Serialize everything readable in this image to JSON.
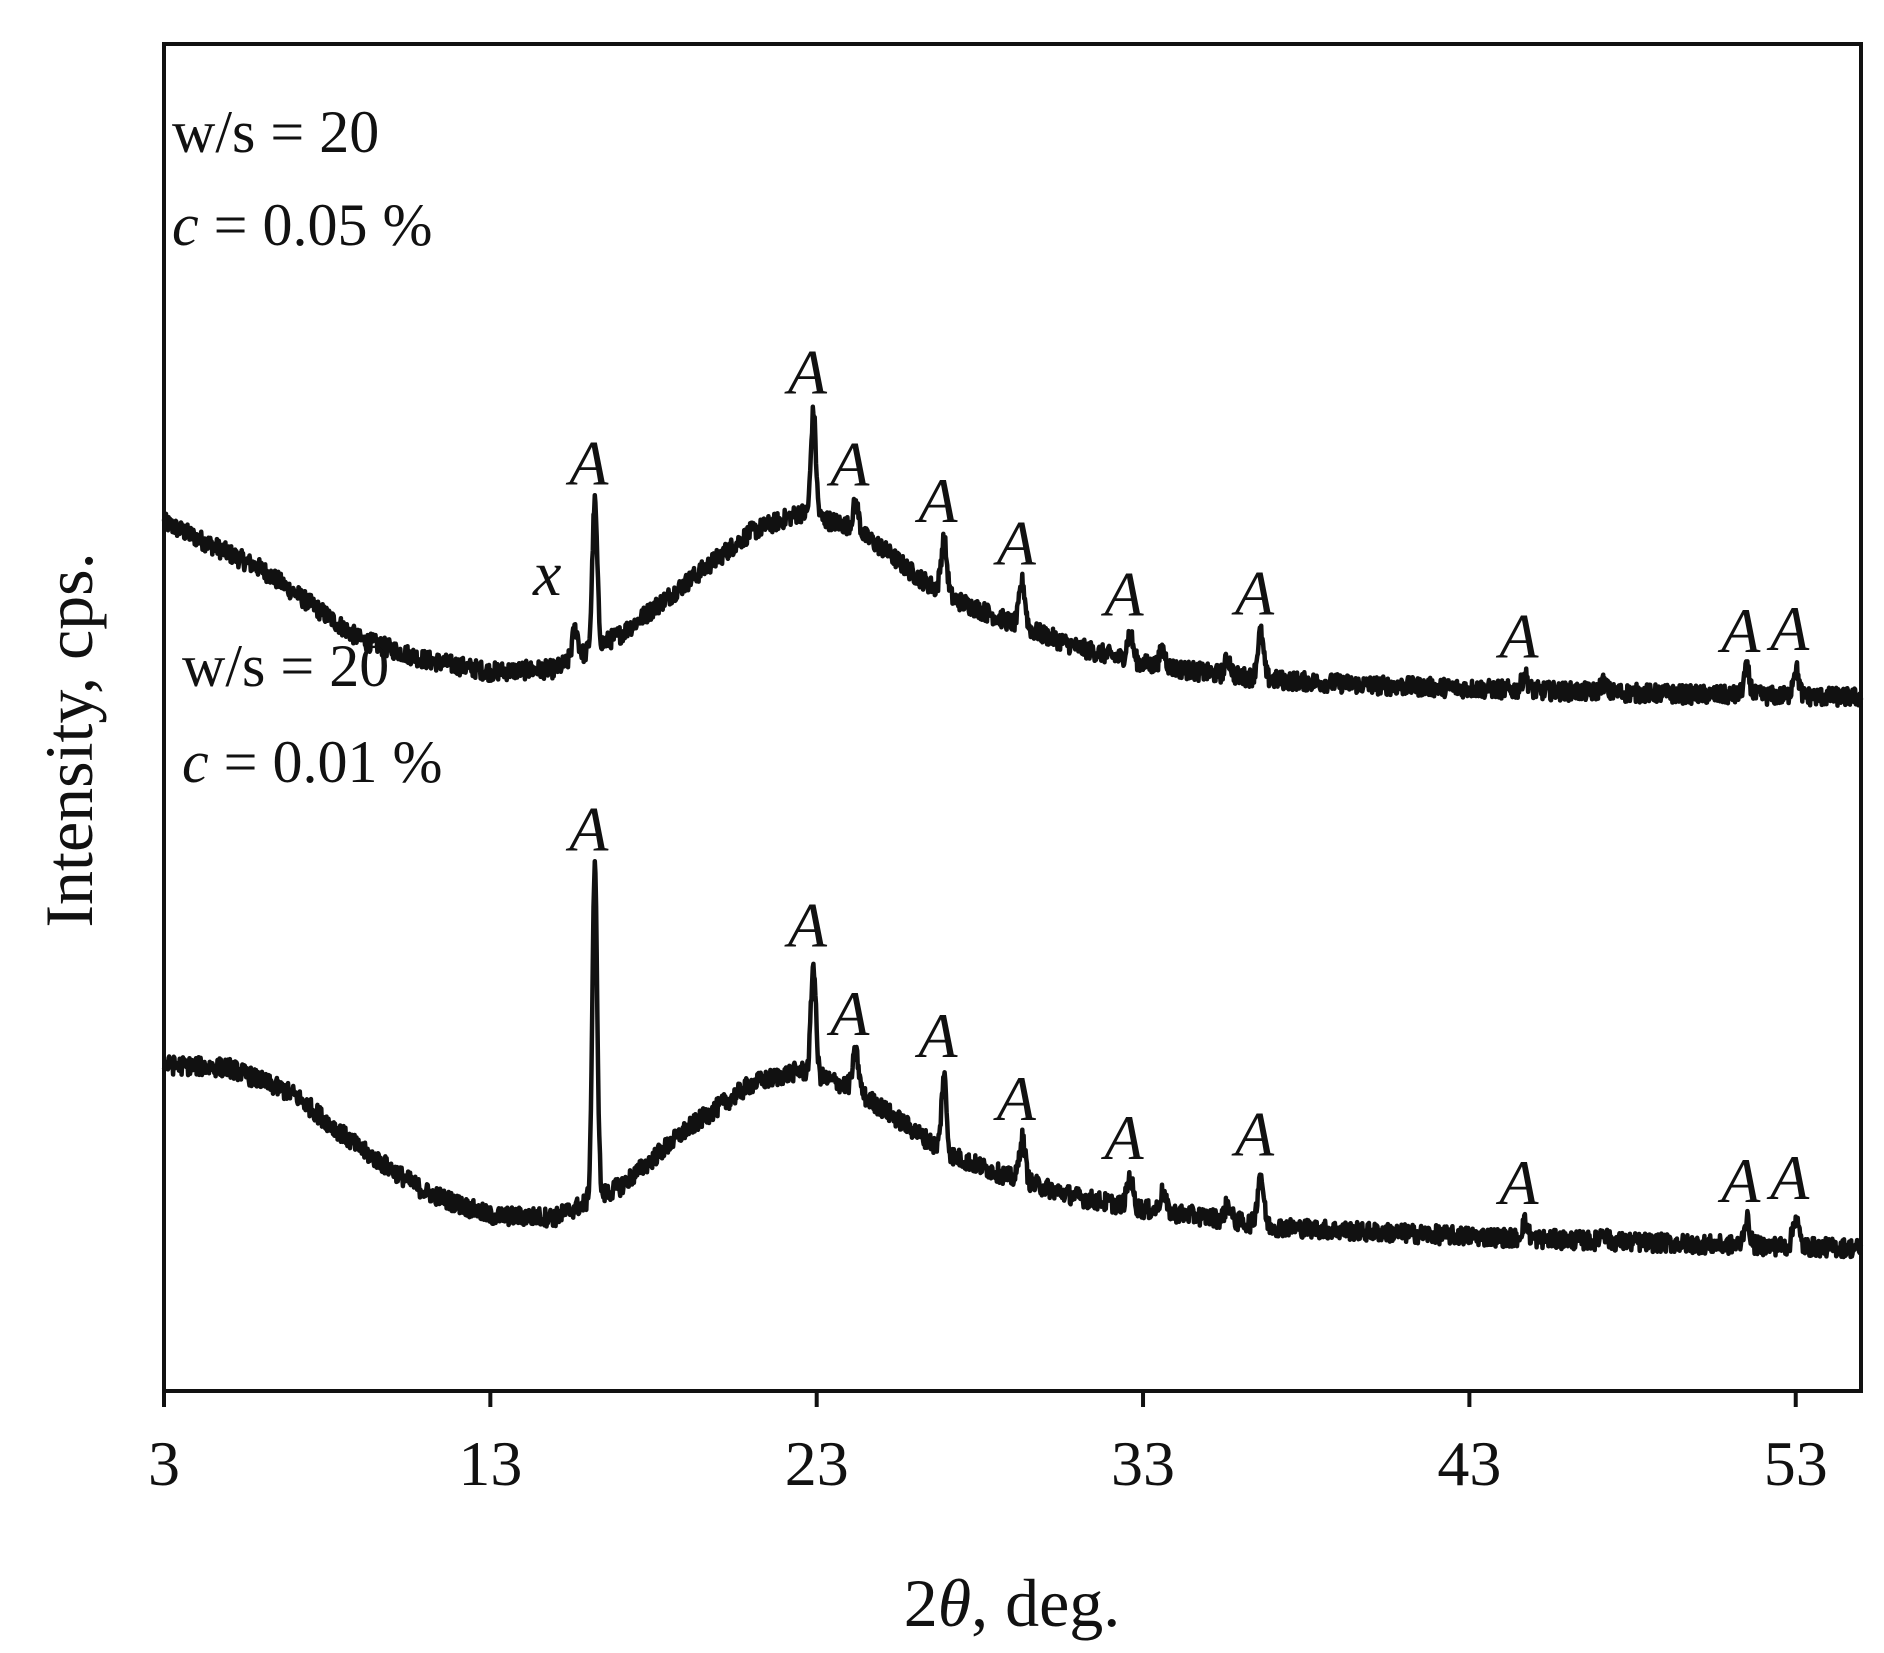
{
  "chart_data": {
    "type": "line",
    "xlabel_prefix": "2",
    "xlabel_symbol": "θ",
    "xlabel_suffix": ", deg.",
    "ylabel": "Intensity, cps.",
    "xlim": [
      3,
      55
    ],
    "xticks": [
      "3",
      "13",
      "23",
      "33",
      "43",
      "53"
    ],
    "yticks_shown": false,
    "grid": false,
    "line_color": "#111111",
    "series": [
      {
        "annotation_line1": "w/s = 20",
        "annotation_var": "c",
        "annotation_rest": " = 0.05 %",
        "baseline": [
          [
            3,
            0.645
          ],
          [
            6,
            0.61
          ],
          [
            9,
            0.558
          ],
          [
            11,
            0.543
          ],
          [
            13,
            0.534
          ],
          [
            15,
            0.536
          ],
          [
            17,
            0.562
          ],
          [
            19,
            0.6
          ],
          [
            21,
            0.638
          ],
          [
            22.5,
            0.652
          ],
          [
            24,
            0.642
          ],
          [
            25,
            0.626
          ],
          [
            26,
            0.606
          ],
          [
            27,
            0.59
          ],
          [
            28,
            0.58
          ],
          [
            29,
            0.57
          ],
          [
            31,
            0.552
          ],
          [
            33,
            0.54
          ],
          [
            35,
            0.533
          ],
          [
            37,
            0.528
          ],
          [
            40,
            0.524
          ],
          [
            45,
            0.52
          ],
          [
            50,
            0.517
          ],
          [
            55,
            0.515
          ]
        ],
        "peaks": [
          {
            "x": 16.2,
            "height": 0.108,
            "label": "A"
          },
          {
            "x": 15.6,
            "height": 0.022,
            "label": "x"
          },
          {
            "x": 22.9,
            "height": 0.078,
            "label": "A"
          },
          {
            "x": 24.2,
            "height": 0.02,
            "label": "A"
          },
          {
            "x": 26.9,
            "height": 0.04,
            "label": "A"
          },
          {
            "x": 29.3,
            "height": 0.033,
            "label": "A"
          },
          {
            "x": 32.6,
            "height": 0.02,
            "label": "A"
          },
          {
            "x": 33.6,
            "height": 0.012
          },
          {
            "x": 35.6,
            "height": 0.012
          },
          {
            "x": 36.6,
            "height": 0.034,
            "label": "A"
          },
          {
            "x": 44.7,
            "height": 0.011,
            "label": "A"
          },
          {
            "x": 47.1,
            "height": 0.007
          },
          {
            "x": 51.5,
            "height": 0.019,
            "label": "A"
          },
          {
            "x": 53.0,
            "height": 0.021,
            "label": "A"
          }
        ]
      },
      {
        "annotation_line1": "w/s = 20",
        "annotation_var": "c",
        "annotation_rest": " = 0.01 %",
        "baseline": [
          [
            3,
            0.242
          ],
          [
            5,
            0.24
          ],
          [
            7,
            0.22
          ],
          [
            9,
            0.18
          ],
          [
            11,
            0.148
          ],
          [
            13,
            0.13
          ],
          [
            15,
            0.129
          ],
          [
            17,
            0.152
          ],
          [
            19,
            0.194
          ],
          [
            21,
            0.228
          ],
          [
            22.5,
            0.238
          ],
          [
            24,
            0.226
          ],
          [
            25,
            0.21
          ],
          [
            26,
            0.193
          ],
          [
            27,
            0.176
          ],
          [
            29,
            0.158
          ],
          [
            31,
            0.144
          ],
          [
            33,
            0.135
          ],
          [
            35,
            0.129
          ],
          [
            37,
            0.122
          ],
          [
            40,
            0.118
          ],
          [
            45,
            0.113
          ],
          [
            50,
            0.109
          ],
          [
            55,
            0.106
          ]
        ],
        "peaks": [
          {
            "x": 16.2,
            "height": 0.245,
            "label": "A"
          },
          {
            "x": 22.9,
            "height": 0.082,
            "label": "A"
          },
          {
            "x": 24.2,
            "height": 0.028,
            "label": "A"
          },
          {
            "x": 26.9,
            "height": 0.057,
            "label": "A"
          },
          {
            "x": 29.3,
            "height": 0.032,
            "label": "A"
          },
          {
            "x": 32.6,
            "height": 0.022,
            "label": "A"
          },
          {
            "x": 33.6,
            "height": 0.014
          },
          {
            "x": 35.6,
            "height": 0.012
          },
          {
            "x": 36.6,
            "height": 0.038,
            "label": "A"
          },
          {
            "x": 44.7,
            "height": 0.012,
            "label": "A"
          },
          {
            "x": 47.1,
            "height": 0.007
          },
          {
            "x": 51.5,
            "height": 0.019,
            "label": "A"
          },
          {
            "x": 53.0,
            "height": 0.022,
            "label": "A"
          }
        ]
      }
    ]
  }
}
